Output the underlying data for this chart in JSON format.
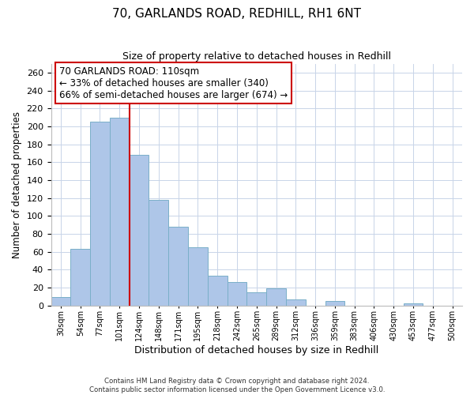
{
  "title": "70, GARLANDS ROAD, REDHILL, RH1 6NT",
  "subtitle": "Size of property relative to detached houses in Redhill",
  "xlabel": "Distribution of detached houses by size in Redhill",
  "ylabel": "Number of detached properties",
  "bin_labels": [
    "30sqm",
    "54sqm",
    "77sqm",
    "101sqm",
    "124sqm",
    "148sqm",
    "171sqm",
    "195sqm",
    "218sqm",
    "242sqm",
    "265sqm",
    "289sqm",
    "312sqm",
    "336sqm",
    "359sqm",
    "383sqm",
    "406sqm",
    "430sqm",
    "453sqm",
    "477sqm",
    "500sqm"
  ],
  "bar_values": [
    9,
    63,
    205,
    210,
    168,
    118,
    88,
    65,
    33,
    26,
    15,
    19,
    7,
    0,
    5,
    0,
    0,
    0,
    2,
    0,
    0
  ],
  "bar_color": "#aec6e8",
  "bar_edge_color": "#7aafc8",
  "marker_line_color": "#cc0000",
  "ylim": [
    0,
    270
  ],
  "yticks": [
    0,
    20,
    40,
    60,
    80,
    100,
    120,
    140,
    160,
    180,
    200,
    220,
    240,
    260
  ],
  "annotation_title": "70 GARLANDS ROAD: 110sqm",
  "annotation_line1": "← 33% of detached houses are smaller (340)",
  "annotation_line2": "66% of semi-detached houses are larger (674) →",
  "annotation_box_color": "#ffffff",
  "annotation_box_edge": "#cc0000",
  "footer1": "Contains HM Land Registry data © Crown copyright and database right 2024.",
  "footer2": "Contains public sector information licensed under the Open Government Licence v3.0.",
  "background_color": "#ffffff",
  "grid_color": "#c8d4e8"
}
